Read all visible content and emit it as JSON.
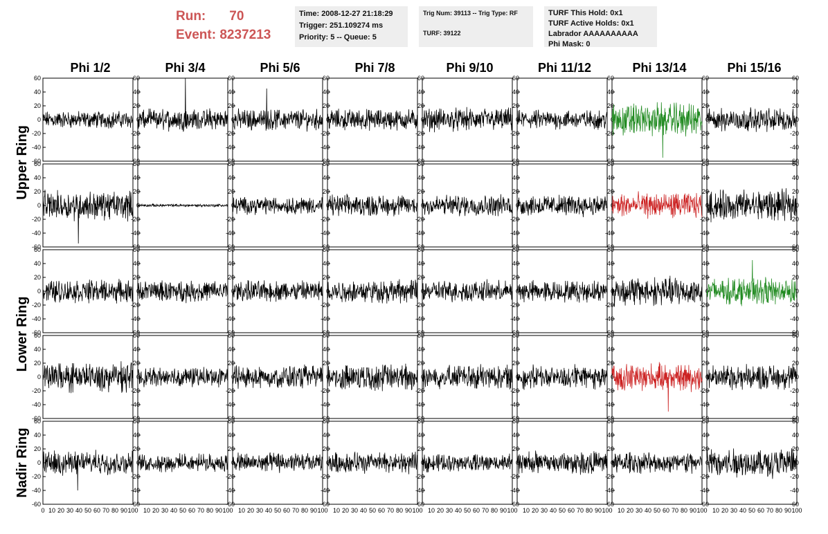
{
  "header": {
    "run_label": "Run:",
    "run_value": "70",
    "event_label": "Event:",
    "event_value": "8237213",
    "run_color": "#cc5555"
  },
  "info_box_1": {
    "time": "Time: 2008-12-27 21:18:29",
    "trigger": "Trigger: 251.109274 ms",
    "priority": "Priority: 5 -- Queue: 5"
  },
  "info_box_2": {
    "trig": "Trig Num: 39113 -- Trig Type: RF",
    "turf": "TURF: 39122"
  },
  "info_box_3": {
    "this_hold": "TURF This Hold: 0x1",
    "active_holds": "TURF Active Holds: 0x1",
    "labrador": "Labrador AAAAAAAAAA",
    "phi_mask": "Phi Mask: 0"
  },
  "chart_data": {
    "type": "line",
    "columns": [
      "Phi 1/2",
      "Phi 3/4",
      "Phi 5/6",
      "Phi 7/8",
      "Phi 9/10",
      "Phi 11/12",
      "Phi 13/14",
      "Phi 15/16"
    ],
    "ring_labels": [
      {
        "name": "Upper Ring",
        "rows": [
          0,
          1
        ]
      },
      {
        "name": "Lower Ring",
        "rows": [
          2,
          3
        ]
      },
      {
        "name": "Nadir Ring",
        "rows": [
          4
        ]
      }
    ],
    "ylim": [
      -60,
      60
    ],
    "xlim": [
      0,
      100
    ],
    "y_ticks": [
      -60,
      -40,
      -20,
      0,
      20,
      40,
      60
    ],
    "x_ticks": [
      0,
      10,
      20,
      30,
      40,
      50,
      60,
      70,
      80,
      90,
      100
    ],
    "colors": {
      "normal": "#000000",
      "hold": "#228b22",
      "active": "#cc2222"
    },
    "panels": [
      [
        {
          "amp": 9,
          "color": "normal",
          "spike": null
        },
        {
          "amp": 11,
          "color": "normal",
          "spike": 60
        },
        {
          "amp": 11,
          "color": "normal",
          "spike": 45
        },
        {
          "amp": 11,
          "color": "normal",
          "spike": null
        },
        {
          "amp": 12,
          "color": "normal",
          "spike": null
        },
        {
          "amp": 10,
          "color": "normal",
          "spike": null
        },
        {
          "amp": 17,
          "color": "hold",
          "spike": -55
        },
        {
          "amp": 12,
          "color": "normal",
          "spike": null
        }
      ],
      [
        {
          "amp": 15,
          "color": "normal",
          "spike": -55
        },
        {
          "amp": 1.5,
          "color": "normal",
          "spike": null
        },
        {
          "amp": 9,
          "color": "normal",
          "spike": null
        },
        {
          "amp": 11,
          "color": "normal",
          "spike": null
        },
        {
          "amp": 11,
          "color": "normal",
          "spike": null
        },
        {
          "amp": 11,
          "color": "normal",
          "spike": null
        },
        {
          "amp": 13,
          "color": "active",
          "spike": null
        },
        {
          "amp": 16,
          "color": "normal",
          "spike": null
        }
      ],
      [
        {
          "amp": 12,
          "color": "normal",
          "spike": null
        },
        {
          "amp": 11,
          "color": "normal",
          "spike": null
        },
        {
          "amp": 11,
          "color": "normal",
          "spike": null
        },
        {
          "amp": 12,
          "color": "normal",
          "spike": null
        },
        {
          "amp": 11,
          "color": "normal",
          "spike": null
        },
        {
          "amp": 11,
          "color": "normal",
          "spike": null
        },
        {
          "amp": 15,
          "color": "normal",
          "spike": null
        },
        {
          "amp": 14,
          "color": "hold",
          "spike": 45
        }
      ],
      [
        {
          "amp": 15,
          "color": "normal",
          "spike": null
        },
        {
          "amp": 10,
          "color": "normal",
          "spike": null
        },
        {
          "amp": 12,
          "color": "normal",
          "spike": null
        },
        {
          "amp": 14,
          "color": "normal",
          "spike": null
        },
        {
          "amp": 13,
          "color": "normal",
          "spike": null
        },
        {
          "amp": 12,
          "color": "normal",
          "spike": null
        },
        {
          "amp": 14,
          "color": "active",
          "spike": -50
        },
        {
          "amp": 13,
          "color": "normal",
          "spike": null
        }
      ],
      [
        {
          "amp": 12,
          "color": "normal",
          "spike": -40
        },
        {
          "amp": 9,
          "color": "normal",
          "spike": null
        },
        {
          "amp": 10,
          "color": "normal",
          "spike": null
        },
        {
          "amp": 11,
          "color": "normal",
          "spike": null
        },
        {
          "amp": 9,
          "color": "normal",
          "spike": null
        },
        {
          "amp": 12,
          "color": "normal",
          "spike": null
        },
        {
          "amp": 11,
          "color": "normal",
          "spike": null
        },
        {
          "amp": 15,
          "color": "normal",
          "spike": null
        }
      ]
    ]
  }
}
